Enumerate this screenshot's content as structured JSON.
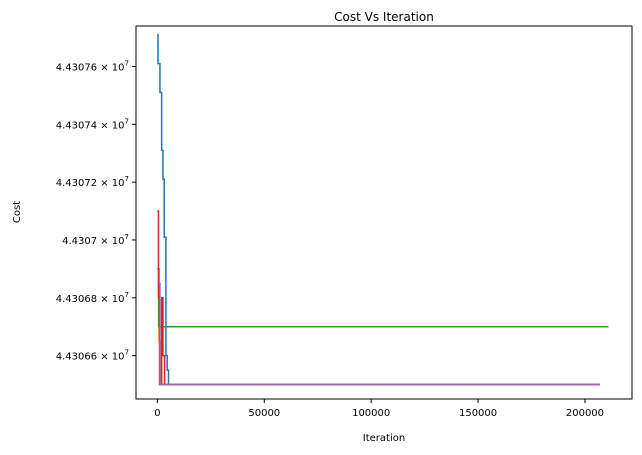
{
  "chart_data": {
    "type": "line",
    "title": "Cost Vs Iteration",
    "xlabel": "Iteration",
    "ylabel": "Cost",
    "xlim": [
      -10000,
      222000
    ],
    "ylim": [
      44306450,
      44307740
    ],
    "grid": false,
    "legend": "none",
    "x_ticks": [
      0,
      50000,
      100000,
      150000,
      200000
    ],
    "x_tick_labels": [
      "0",
      "50000",
      "100000",
      "150000",
      "200000"
    ],
    "y_ticks": [
      44306600,
      44306800,
      44307000,
      44307200,
      44307400,
      44307600
    ],
    "y_tick_labels": [
      "4.43066",
      "4.43068",
      "4.4307",
      "4.43072",
      "4.43074",
      "4.43076"
    ],
    "y_tick_exponent": "7",
    "series": [
      {
        "color": "#1f77b4",
        "x": [
          0,
          300,
          300,
          1200,
          1200,
          2000,
          2000,
          2600,
          2600,
          3200,
          3200,
          4000,
          4000,
          4600,
          4600,
          5200,
          5200,
          207000
        ],
        "y": [
          44307710,
          44307710,
          44307610,
          44307610,
          44307510,
          44307510,
          44307310,
          44307310,
          44307210,
          44307210,
          44307010,
          44307010,
          44306600,
          44306600,
          44306550,
          44306550,
          44306500,
          44306500
        ]
      },
      {
        "color": "#ff7f0e",
        "x": [
          0,
          800,
          800,
          1800,
          1800,
          207000
        ],
        "y": [
          44306900,
          44306900,
          44306650,
          44306650,
          44306500,
          44306500
        ]
      },
      {
        "color": "#2ca02c",
        "x": [
          0,
          600,
          600,
          211000
        ],
        "y": [
          44306900,
          44306900,
          44306700,
          44306700
        ]
      },
      {
        "color": "#d62728",
        "x": [
          0,
          500,
          500,
          1000,
          1000,
          2000,
          2000,
          2600,
          2600,
          3400,
          3400,
          207000
        ],
        "y": [
          44307100,
          44307100,
          44306800,
          44306800,
          44306500,
          44306500,
          44306800,
          44306800,
          44306600,
          44306600,
          44306500,
          44306500
        ]
      },
      {
        "color": "#9467bd",
        "x": [
          0,
          1200,
          1200,
          207000
        ],
        "y": [
          44306850,
          44306850,
          44306500,
          44306500
        ]
      }
    ]
  }
}
